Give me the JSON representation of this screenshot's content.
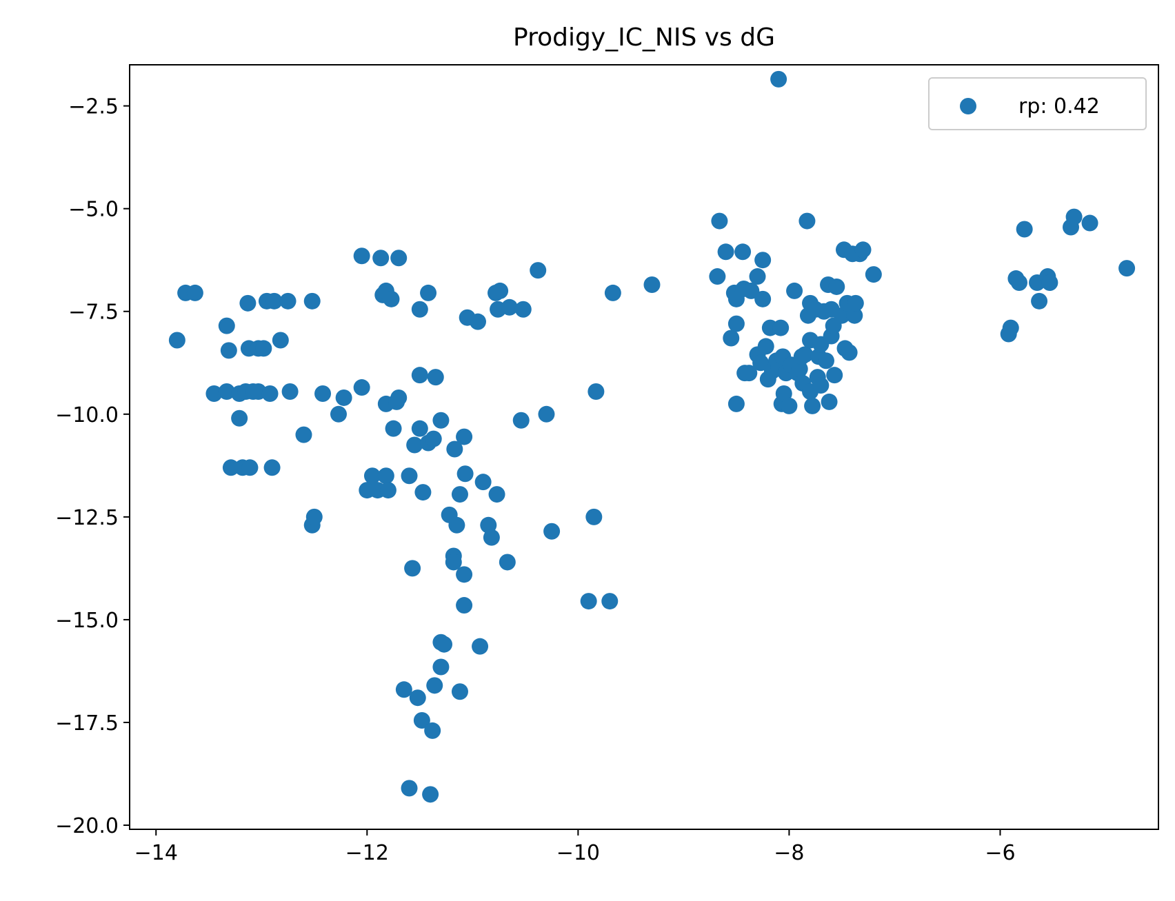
{
  "chart_data": {
    "type": "scatter",
    "title": "Prodigy_IC_NIS vs dG",
    "xlabel": "",
    "ylabel": "",
    "xlim": [
      -14.25,
      -4.5
    ],
    "ylim": [
      -20.1,
      -1.5
    ],
    "xticks": [
      -14,
      -12,
      -10,
      -8,
      -6
    ],
    "xtick_labels": [
      "−14",
      "−12",
      "−10",
      "−8",
      "−6"
    ],
    "yticks": [
      -2.5,
      -5.0,
      -7.5,
      -10.0,
      -12.5,
      -15.0,
      -17.5,
      -20.0
    ],
    "ytick_labels": [
      "−2.5",
      "−5.0",
      "−7.5",
      "−10.0",
      "−12.5",
      "−15.0",
      "−17.5",
      "−20.0"
    ],
    "grid": false,
    "legend": {
      "position": "top-right"
    },
    "series": [
      {
        "name": "rp: 0.42",
        "color": "#1f77b4",
        "points": [
          [
            -13.8,
            -8.2
          ],
          [
            -13.72,
            -7.05
          ],
          [
            -13.63,
            -7.05
          ],
          [
            -13.45,
            -9.5
          ],
          [
            -13.33,
            -7.85
          ],
          [
            -13.33,
            -9.45
          ],
          [
            -13.31,
            -8.45
          ],
          [
            -13.29,
            -11.3
          ],
          [
            -13.21,
            -10.1
          ],
          [
            -13.21,
            -9.5
          ],
          [
            -13.18,
            -11.3
          ],
          [
            -13.15,
            -9.45
          ],
          [
            -13.13,
            -7.3
          ],
          [
            -13.12,
            -8.4
          ],
          [
            -13.11,
            -11.3
          ],
          [
            -13.08,
            -9.45
          ],
          [
            -13.03,
            -8.4
          ],
          [
            -13.03,
            -9.45
          ],
          [
            -12.98,
            -8.4
          ],
          [
            -12.95,
            -7.25
          ],
          [
            -12.92,
            -9.5
          ],
          [
            -12.9,
            -11.3
          ],
          [
            -12.88,
            -7.25
          ],
          [
            -12.82,
            -8.2
          ],
          [
            -12.75,
            -7.25
          ],
          [
            -12.73,
            -9.45
          ],
          [
            -12.6,
            -10.5
          ],
          [
            -12.52,
            -7.25
          ],
          [
            -12.52,
            -12.7
          ],
          [
            -12.5,
            -12.5
          ],
          [
            -12.42,
            -9.5
          ],
          [
            -12.27,
            -10.0
          ],
          [
            -12.22,
            -9.6
          ],
          [
            -12.05,
            -9.35
          ],
          [
            -12.05,
            -6.15
          ],
          [
            -12.0,
            -11.85
          ],
          [
            -11.95,
            -11.5
          ],
          [
            -11.9,
            -11.85
          ],
          [
            -11.87,
            -6.2
          ],
          [
            -11.85,
            -7.1
          ],
          [
            -11.82,
            -7.0
          ],
          [
            -11.82,
            -11.5
          ],
          [
            -11.82,
            -9.75
          ],
          [
            -11.8,
            -11.85
          ],
          [
            -11.77,
            -7.2
          ],
          [
            -11.75,
            -10.35
          ],
          [
            -11.72,
            -9.7
          ],
          [
            -11.7,
            -6.2
          ],
          [
            -11.7,
            -9.6
          ],
          [
            -11.65,
            -16.7
          ],
          [
            -11.6,
            -11.5
          ],
          [
            -11.6,
            -19.1
          ],
          [
            -11.57,
            -13.75
          ],
          [
            -11.55,
            -10.75
          ],
          [
            -11.52,
            -16.9
          ],
          [
            -11.5,
            -9.05
          ],
          [
            -11.5,
            -7.45
          ],
          [
            -11.5,
            -10.35
          ],
          [
            -11.48,
            -17.45
          ],
          [
            -11.47,
            -11.9
          ],
          [
            -11.42,
            -7.05
          ],
          [
            -11.42,
            -10.7
          ],
          [
            -11.4,
            -19.25
          ],
          [
            -11.38,
            -17.7
          ],
          [
            -11.37,
            -10.6
          ],
          [
            -11.36,
            -16.6
          ],
          [
            -11.35,
            -9.1
          ],
          [
            -11.3,
            -10.15
          ],
          [
            -11.3,
            -16.15
          ],
          [
            -11.3,
            -15.55
          ],
          [
            -11.27,
            -15.6
          ],
          [
            -11.22,
            -12.45
          ],
          [
            -11.18,
            -13.45
          ],
          [
            -11.18,
            -13.6
          ],
          [
            -11.17,
            -10.85
          ],
          [
            -11.15,
            -12.7
          ],
          [
            -11.12,
            -16.75
          ],
          [
            -11.12,
            -11.95
          ],
          [
            -11.08,
            -14.65
          ],
          [
            -11.08,
            -13.9
          ],
          [
            -11.08,
            -10.55
          ],
          [
            -11.07,
            -11.45
          ],
          [
            -11.05,
            -7.65
          ],
          [
            -10.95,
            -7.75
          ],
          [
            -10.93,
            -15.65
          ],
          [
            -10.9,
            -11.65
          ],
          [
            -10.85,
            -12.7
          ],
          [
            -10.82,
            -13.0
          ],
          [
            -10.78,
            -7.05
          ],
          [
            -10.77,
            -11.95
          ],
          [
            -10.76,
            -7.45
          ],
          [
            -10.74,
            -7.0
          ],
          [
            -10.67,
            -13.6
          ],
          [
            -10.65,
            -7.4
          ],
          [
            -10.54,
            -10.15
          ],
          [
            -10.52,
            -7.45
          ],
          [
            -10.38,
            -6.5
          ],
          [
            -10.3,
            -10.0
          ],
          [
            -10.25,
            -12.85
          ],
          [
            -9.9,
            -14.55
          ],
          [
            -9.85,
            -12.5
          ],
          [
            -9.83,
            -9.45
          ],
          [
            -9.7,
            -14.55
          ],
          [
            -9.67,
            -7.05
          ],
          [
            -9.3,
            -6.85
          ],
          [
            -8.68,
            -6.65
          ],
          [
            -8.66,
            -5.3
          ],
          [
            -8.6,
            -6.05
          ],
          [
            -8.55,
            -8.15
          ],
          [
            -8.52,
            -7.05
          ],
          [
            -8.5,
            -9.75
          ],
          [
            -8.5,
            -7.2
          ],
          [
            -8.5,
            -7.8
          ],
          [
            -8.44,
            -6.05
          ],
          [
            -8.43,
            -6.95
          ],
          [
            -8.42,
            -9.0
          ],
          [
            -8.38,
            -9.0
          ],
          [
            -8.36,
            -7.0
          ],
          [
            -8.3,
            -6.65
          ],
          [
            -8.3,
            -8.55
          ],
          [
            -8.27,
            -8.75
          ],
          [
            -8.25,
            -6.25
          ],
          [
            -8.25,
            -7.2
          ],
          [
            -8.22,
            -8.35
          ],
          [
            -8.2,
            -9.15
          ],
          [
            -8.18,
            -7.9
          ],
          [
            -8.16,
            -8.95
          ],
          [
            -8.12,
            -8.7
          ],
          [
            -8.1,
            -1.85
          ],
          [
            -8.1,
            -8.85
          ],
          [
            -8.08,
            -7.9
          ],
          [
            -8.07,
            -9.75
          ],
          [
            -8.06,
            -8.6
          ],
          [
            -8.05,
            -9.5
          ],
          [
            -8.03,
            -9.0
          ],
          [
            -8.0,
            -9.8
          ],
          [
            -7.98,
            -8.8
          ],
          [
            -7.95,
            -7.0
          ],
          [
            -7.92,
            -9.0
          ],
          [
            -7.9,
            -8.9
          ],
          [
            -7.88,
            -8.6
          ],
          [
            -7.87,
            -9.25
          ],
          [
            -7.85,
            -8.55
          ],
          [
            -7.83,
            -5.3
          ],
          [
            -7.82,
            -7.6
          ],
          [
            -7.8,
            -8.2
          ],
          [
            -7.8,
            -9.45
          ],
          [
            -7.8,
            -7.3
          ],
          [
            -7.78,
            -9.8
          ],
          [
            -7.75,
            -7.45
          ],
          [
            -7.73,
            -9.1
          ],
          [
            -7.72,
            -8.6
          ],
          [
            -7.7,
            -8.3
          ],
          [
            -7.7,
            -9.3
          ],
          [
            -7.67,
            -7.5
          ],
          [
            -7.65,
            -8.7
          ],
          [
            -7.63,
            -6.85
          ],
          [
            -7.62,
            -9.7
          ],
          [
            -7.6,
            -7.45
          ],
          [
            -7.6,
            -8.1
          ],
          [
            -7.58,
            -7.85
          ],
          [
            -7.57,
            -9.05
          ],
          [
            -7.55,
            -6.9
          ],
          [
            -7.5,
            -7.6
          ],
          [
            -7.48,
            -6.0
          ],
          [
            -7.47,
            -8.4
          ],
          [
            -7.45,
            -7.3
          ],
          [
            -7.43,
            -8.5
          ],
          [
            -7.4,
            -6.1
          ],
          [
            -7.38,
            -7.6
          ],
          [
            -7.37,
            -7.3
          ],
          [
            -7.33,
            -6.1
          ],
          [
            -7.3,
            -6.0
          ],
          [
            -7.2,
            -6.6
          ],
          [
            -5.92,
            -8.05
          ],
          [
            -5.9,
            -7.9
          ],
          [
            -5.85,
            -6.7
          ],
          [
            -5.82,
            -6.8
          ],
          [
            -5.77,
            -5.5
          ],
          [
            -5.65,
            -6.8
          ],
          [
            -5.63,
            -7.25
          ],
          [
            -5.55,
            -6.65
          ],
          [
            -5.53,
            -6.8
          ],
          [
            -5.33,
            -5.45
          ],
          [
            -5.3,
            -5.2
          ],
          [
            -5.15,
            -5.35
          ],
          [
            -4.8,
            -6.45
          ]
        ]
      }
    ]
  }
}
